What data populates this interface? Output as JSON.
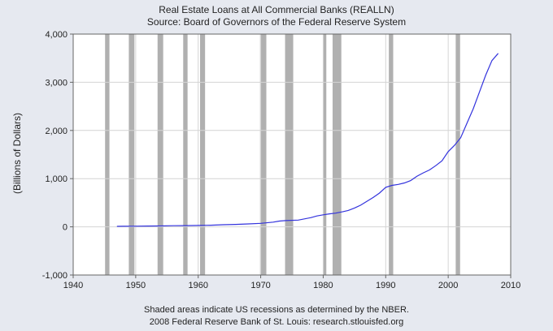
{
  "chart_data": {
    "type": "line",
    "title": "Real Estate Loans at All Commercial Banks (REALLN)",
    "subtitle": "Source: Board of Governors of the Federal Reserve System",
    "xlabel": "",
    "ylabel": "(Billions of Dollars)",
    "xlim": [
      1940,
      2010
    ],
    "ylim": [
      -1000,
      4000
    ],
    "x_ticks": [
      1940,
      1950,
      1960,
      1970,
      1980,
      1990,
      2000,
      2010
    ],
    "x_tick_labels": [
      "1940",
      "1950",
      "1960",
      "1970",
      "1980",
      "1990",
      "2000",
      "2010"
    ],
    "y_ticks": [
      -1000,
      0,
      1000,
      2000,
      3000,
      4000
    ],
    "y_tick_labels": [
      "-1,000",
      "0",
      "1,000",
      "2,000",
      "3,000",
      "4,000"
    ],
    "grid": true,
    "series_color": "#3333dd",
    "recession_color": "#b0b0b0",
    "recessions": [
      [
        1945.1,
        1945.8
      ],
      [
        1948.9,
        1949.8
      ],
      [
        1953.5,
        1954.4
      ],
      [
        1957.6,
        1958.3
      ],
      [
        1960.3,
        1961.1
      ],
      [
        1969.9,
        1970.9
      ],
      [
        1973.9,
        1975.2
      ],
      [
        1980.0,
        1980.5
      ],
      [
        1981.5,
        1982.9
      ],
      [
        1990.5,
        1991.2
      ],
      [
        2001.2,
        2001.9
      ]
    ],
    "series": [
      {
        "x": [
          1947,
          1948,
          1950,
          1952,
          1954,
          1956,
          1958,
          1960,
          1962,
          1964,
          1966,
          1968,
          1970,
          1972,
          1973,
          1974,
          1976,
          1978,
          1979,
          1980,
          1981,
          1982,
          1983,
          1984,
          1985,
          1986,
          1987,
          1988,
          1989,
          1990,
          1991,
          1992,
          1993,
          1994,
          1995,
          1996,
          1997,
          1998,
          1999,
          2000,
          2001,
          2002,
          2003,
          2004,
          2005,
          2006,
          2007,
          2008
        ],
        "values": [
          10,
          11,
          13,
          16,
          19,
          23,
          26,
          29,
          34,
          43,
          51,
          60,
          73,
          98,
          120,
          130,
          140,
          190,
          225,
          250,
          270,
          285,
          310,
          340,
          390,
          450,
          530,
          610,
          700,
          820,
          860,
          880,
          910,
          960,
          1050,
          1120,
          1180,
          1270,
          1370,
          1560,
          1690,
          1850,
          2150,
          2450,
          2800,
          3150,
          3450,
          3600
        ]
      }
    ]
  },
  "footer": {
    "line1": "Shaded areas indicate US recessions as determined by the NBER.",
    "line2": "2008 Federal Reserve Bank of St. Louis:  research.stlouisfed.org"
  }
}
